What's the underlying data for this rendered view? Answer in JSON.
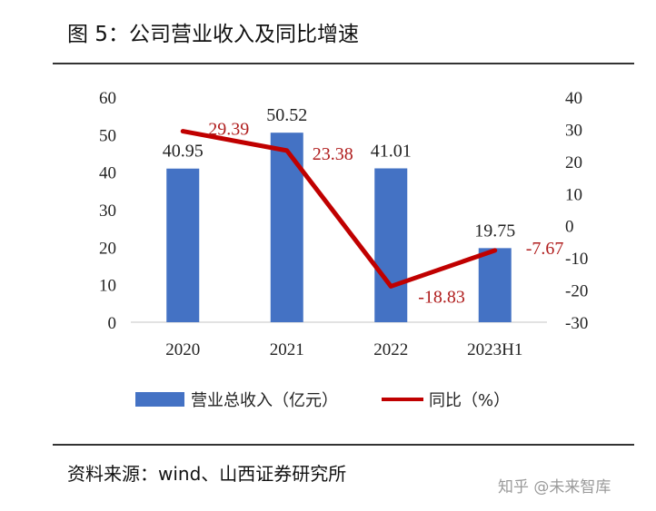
{
  "title": "图 5：公司营业收入及同比增速",
  "source": "资料来源：wind、山西证券研究所",
  "watermark": "知乎 @未来智库",
  "chart_data": {
    "type": "bar",
    "categories": [
      "2020",
      "2021",
      "2022",
      "2023H1"
    ],
    "series": [
      {
        "name": "营业总收入（亿元）",
        "kind": "bar",
        "axis": "left",
        "values": [
          40.95,
          50.52,
          41.01,
          19.75
        ],
        "color": "#4472c4"
      },
      {
        "name": "同比（%）",
        "kind": "line",
        "axis": "right",
        "values": [
          29.39,
          23.38,
          -18.83,
          -7.67
        ],
        "color": "#c00000"
      }
    ],
    "left_axis": {
      "ylim": [
        0,
        60
      ],
      "ticks": [
        "0",
        "10",
        "20",
        "30",
        "40",
        "50",
        "60"
      ]
    },
    "right_axis": {
      "ylim": [
        -30,
        40
      ],
      "ticks": [
        "-30",
        "-20",
        "-10",
        "0",
        "10",
        "20",
        "30",
        "40"
      ]
    },
    "bar_labels": [
      "40.95",
      "50.52",
      "41.01",
      "19.75"
    ],
    "line_labels": [
      "29.39",
      "23.38",
      "-18.83",
      "-7.67"
    ],
    "legend": {
      "position": "bottom"
    }
  }
}
